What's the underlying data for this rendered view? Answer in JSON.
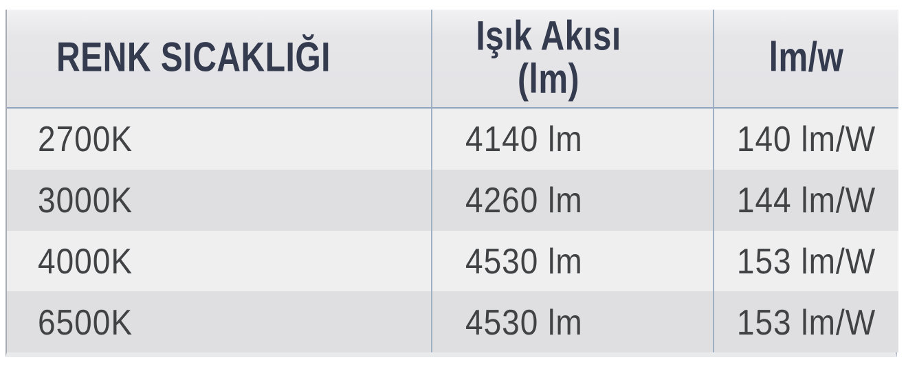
{
  "page": {
    "background": "#ffffff"
  },
  "table": {
    "header": {
      "col1": "RENK SICAKLIĞI",
      "col2_line1": "Işık Akısı",
      "col2_line2": "(lm)",
      "col3": "lm/w"
    },
    "rows": [
      {
        "temp": "2700K",
        "flux": "4140 lm",
        "efficacy": "140 lm/W"
      },
      {
        "temp": "3000K",
        "flux": "4260 lm",
        "efficacy": "144 lm/W"
      },
      {
        "temp": "4000K",
        "flux": "4530 lm",
        "efficacy": "153 lm/W"
      },
      {
        "temp": "6500K",
        "flux": "4530 lm",
        "efficacy": "153 lm/W"
      }
    ],
    "colors": {
      "header_text": "#343b4f",
      "data_text": "#414244",
      "header_bg": "#e5e5e8",
      "row_light": "#efeff0",
      "row_dark": "#dfdfe2",
      "border_inner": "#9fb0c5",
      "border_header_bottom": "#8fa3bc",
      "border_outer_left": "#a8abb2",
      "border_outer_right": "#aab7c9"
    }
  },
  "chart_data": {
    "type": "table",
    "columns": [
      "RENK SICAKLIĞI",
      "Işık Akısı (lm)",
      "lm/w"
    ],
    "rows": [
      [
        "2700K",
        "4140 lm",
        "140 lm/W"
      ],
      [
        "3000K",
        "4260 lm",
        "144 lm/W"
      ],
      [
        "4000K",
        "4530 lm",
        "153 lm/W"
      ],
      [
        "6500K",
        "4530 lm",
        "153 lm/W"
      ]
    ]
  }
}
